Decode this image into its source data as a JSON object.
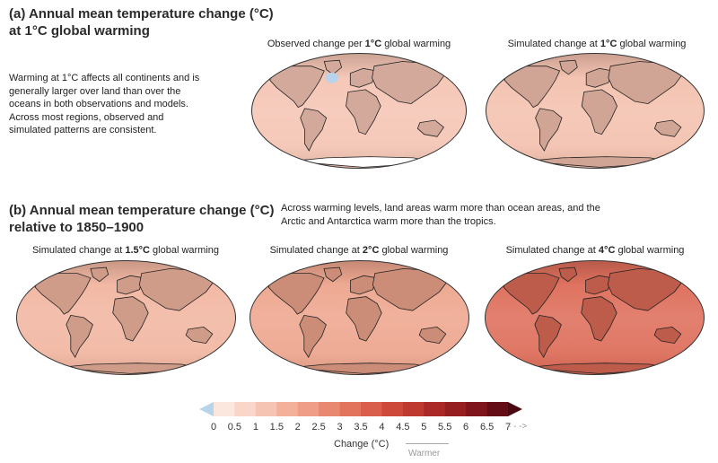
{
  "panel_a": {
    "title_line1": "(a) Annual mean temperature change (°C)",
    "title_line2": "at 1°C global warming",
    "note": "Warming at 1°C affects all continents and is generally larger over land than over the oceans in both observations and models. Across most regions, observed and simulated patterns are consistent.",
    "maps": [
      {
        "prefix": "Observed change per ",
        "bold": "1°C",
        "suffix": " global warming",
        "tint": "#f4c4b3"
      },
      {
        "prefix": "Simulated change at ",
        "bold": "1°C",
        "suffix": " global warming",
        "tint": "#f3c0ad"
      }
    ]
  },
  "panel_b": {
    "title_line1": "(b) Annual mean temperature change (°C)",
    "title_line2": "relative to 1850–1900",
    "note": "Across warming levels, land areas warm more than ocean areas, and the Arctic and Antarctica warm more than the tropics.",
    "maps": [
      {
        "prefix": "Simulated change at ",
        "bold": "1.5°C",
        "suffix": " global warming",
        "tint": "#f1b5a0"
      },
      {
        "prefix": "Simulated change at ",
        "bold": "2°C",
        "suffix": " global warming",
        "tint": "#eda48c"
      },
      {
        "prefix": "Simulated change at ",
        "bold": "4°C",
        "suffix": " global warming",
        "tint": "#dd6b58"
      }
    ]
  },
  "colorbar": {
    "labels": [
      "0",
      "0.5",
      "1",
      "1.5",
      "2",
      "2.5",
      "3",
      "3.5",
      "4",
      "4.5",
      "5",
      "5.5",
      "6",
      "6.5",
      "7"
    ],
    "colors": [
      "#fbe7de",
      "#f9d6c9",
      "#f6c4b2",
      "#f3b19c",
      "#ef9d86",
      "#e98871",
      "#e2735d",
      "#d95e4b",
      "#cd4a3b",
      "#be392f",
      "#ab2a27",
      "#951e21",
      "#7e151c",
      "#650d16"
    ],
    "cool_color": "#b9d3ea",
    "arrow_color": "#4a0a10",
    "title": "Change (°C)",
    "warmer": "Warmer",
    "dots": "- - ->"
  }
}
